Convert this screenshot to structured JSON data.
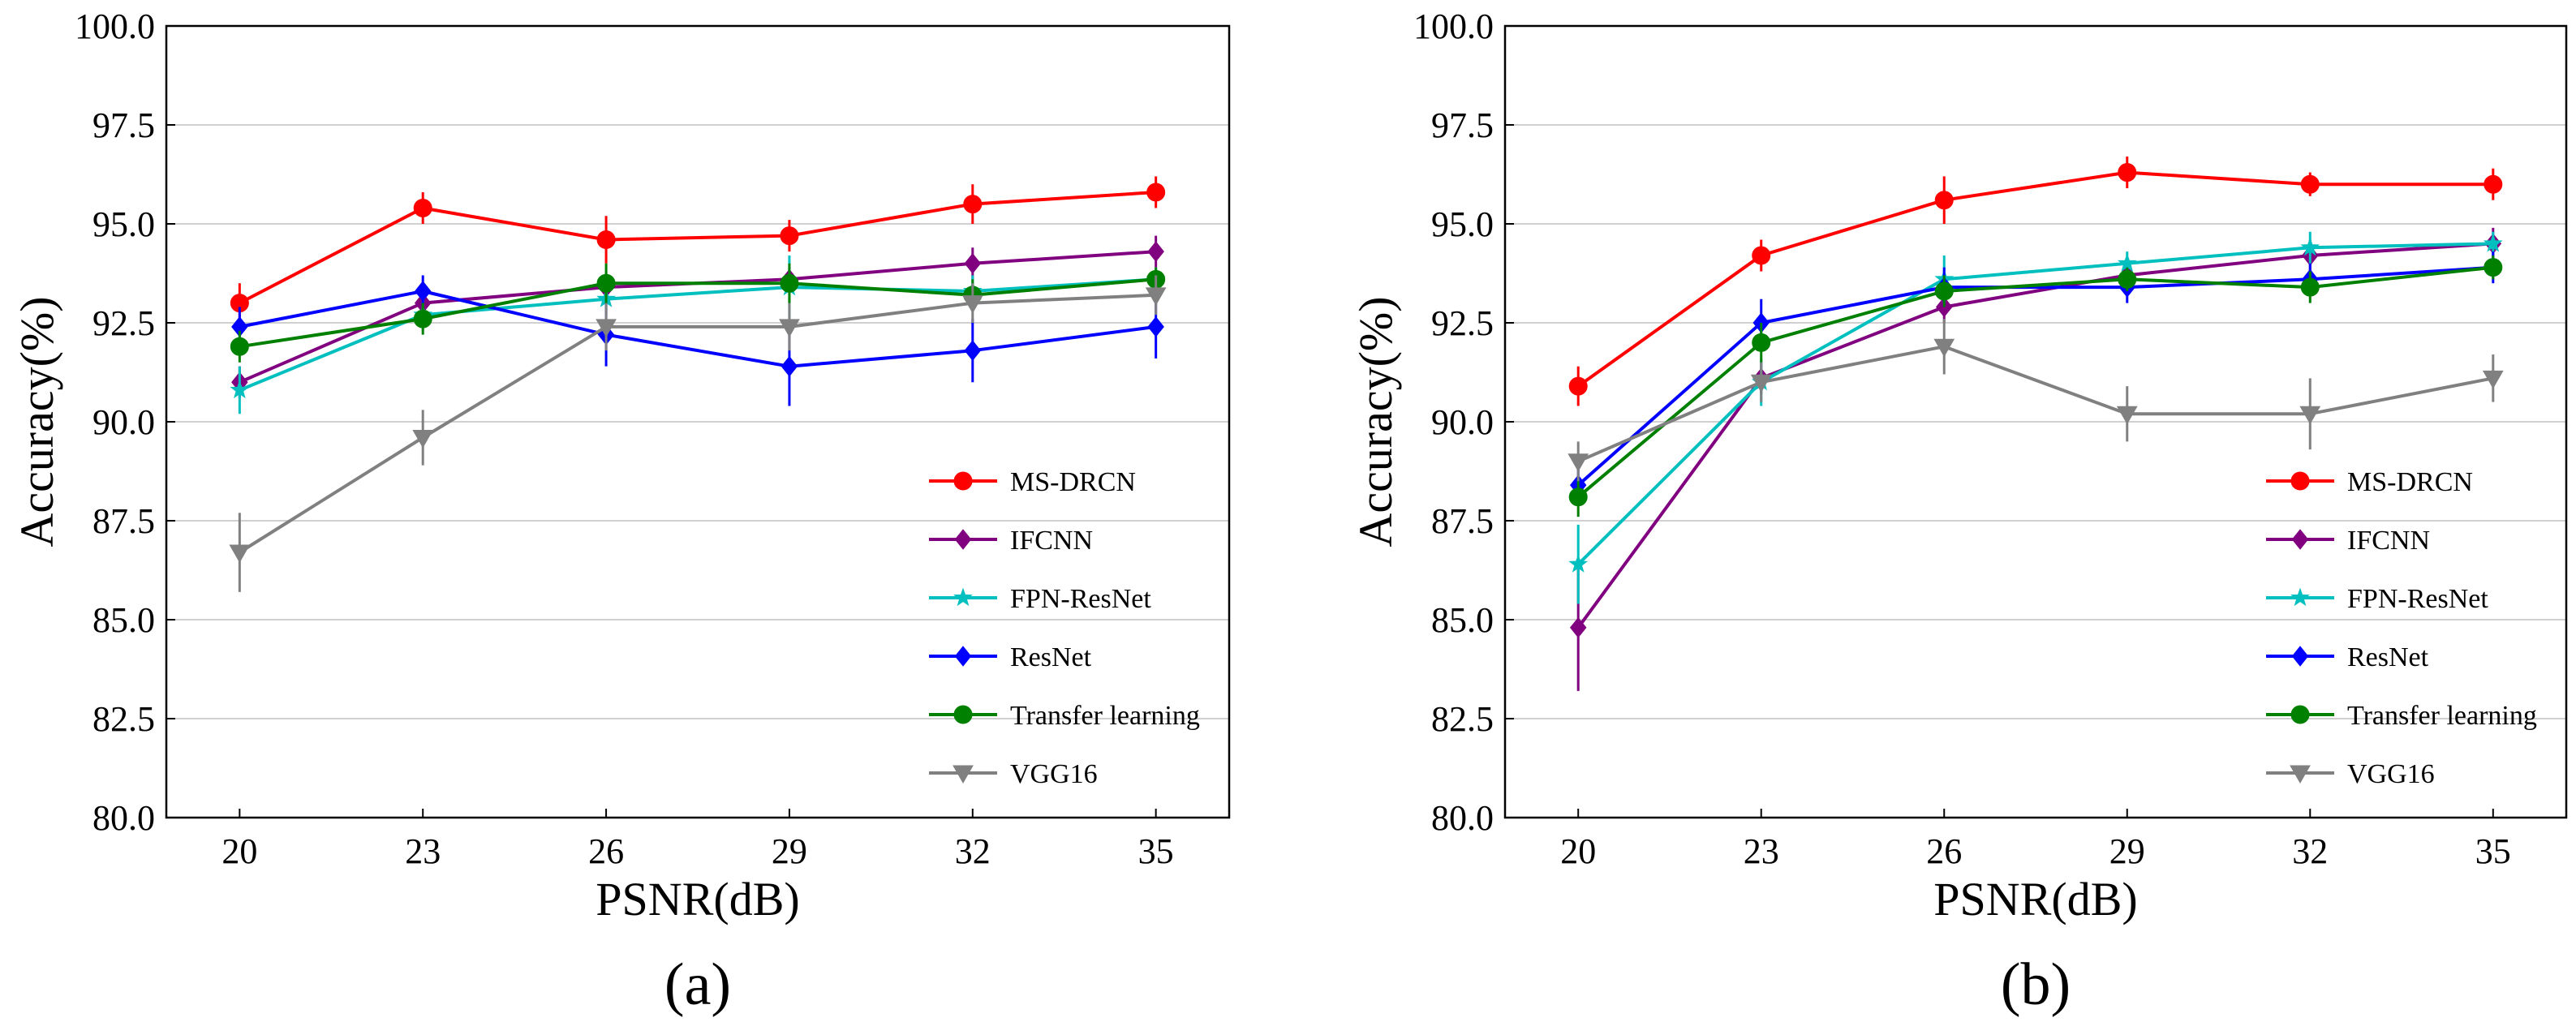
{
  "chart_data": [
    {
      "type": "line",
      "panel_label": "(a)",
      "xlabel": "PSNR(dB)",
      "ylabel": "Accuracy(%)",
      "x": [
        20,
        23,
        26,
        29,
        32,
        35
      ],
      "x_tick_labels": [
        "20",
        "23",
        "26",
        "29",
        "32",
        "35"
      ],
      "xlim": [
        18.8,
        36.2
      ],
      "ylim": [
        80.0,
        100.0
      ],
      "y_ticks": [
        80.0,
        82.5,
        85.0,
        87.5,
        90.0,
        92.5,
        95.0,
        97.5,
        100.0
      ],
      "y_tick_labels": [
        "80.0",
        "82.5",
        "85.0",
        "87.5",
        "90.0",
        "92.5",
        "95.0",
        "97.5",
        "100.0"
      ],
      "grid": "horizontal",
      "legend_position": "bottom-right",
      "series": [
        {
          "name": "MS-DRCN",
          "color": "#ff0000",
          "marker": "circle",
          "values": [
            93.0,
            95.4,
            94.6,
            94.7,
            95.5,
            95.8
          ],
          "errors": [
            0.5,
            0.4,
            0.6,
            0.4,
            0.5,
            0.4
          ]
        },
        {
          "name": "IFCNN",
          "color": "#800080",
          "marker": "diamond",
          "values": [
            91.0,
            93.0,
            93.4,
            93.6,
            94.0,
            94.3
          ],
          "errors": [
            0.4,
            0.4,
            0.4,
            0.3,
            0.4,
            0.4
          ]
        },
        {
          "name": "FPN-ResNet",
          "color": "#00bfbf",
          "marker": "star",
          "values": [
            90.8,
            92.7,
            93.1,
            93.4,
            93.3,
            93.6
          ],
          "errors": [
            0.6,
            0.4,
            0.4,
            0.8,
            0.4,
            0.3
          ]
        },
        {
          "name": "ResNet",
          "color": "#0000ff",
          "marker": "diamond",
          "values": [
            92.4,
            93.3,
            92.2,
            91.4,
            91.8,
            92.4
          ],
          "errors": [
            0.5,
            0.4,
            0.8,
            1.0,
            0.8,
            0.8
          ]
        },
        {
          "name": "Transfer learning",
          "color": "#008000",
          "marker": "circle",
          "values": [
            91.9,
            92.6,
            93.5,
            93.5,
            93.2,
            93.6
          ],
          "errors": [
            0.4,
            0.4,
            0.5,
            0.5,
            0.4,
            0.3
          ]
        },
        {
          "name": "VGG16",
          "color": "#808080",
          "marker": "triangle-down",
          "values": [
            86.7,
            89.6,
            92.4,
            92.4,
            93.0,
            93.2
          ],
          "errors": [
            1.0,
            0.7,
            0.6,
            0.6,
            0.5,
            0.5
          ]
        }
      ]
    },
    {
      "type": "line",
      "panel_label": "(b)",
      "xlabel": "PSNR(dB)",
      "ylabel": "Accuracy(%)",
      "x": [
        20,
        23,
        26,
        29,
        32,
        35
      ],
      "x_tick_labels": [
        "20",
        "23",
        "26",
        "29",
        "32",
        "35"
      ],
      "xlim": [
        18.8,
        36.2
      ],
      "ylim": [
        80.0,
        100.0
      ],
      "y_ticks": [
        80.0,
        82.5,
        85.0,
        87.5,
        90.0,
        92.5,
        95.0,
        97.5,
        100.0
      ],
      "y_tick_labels": [
        "80.0",
        "82.5",
        "85.0",
        "87.5",
        "90.0",
        "92.5",
        "95.0",
        "97.5",
        "100.0"
      ],
      "grid": "horizontal",
      "legend_position": "bottom-right",
      "series": [
        {
          "name": "MS-DRCN",
          "color": "#ff0000",
          "marker": "circle",
          "values": [
            90.9,
            94.2,
            95.6,
            96.3,
            96.0,
            96.0
          ],
          "errors": [
            0.5,
            0.4,
            0.6,
            0.4,
            0.3,
            0.4
          ]
        },
        {
          "name": "IFCNN",
          "color": "#800080",
          "marker": "diamond",
          "values": [
            84.8,
            91.1,
            92.9,
            93.7,
            94.2,
            94.5
          ],
          "errors": [
            1.6,
            0.4,
            0.4,
            0.3,
            0.4,
            0.4
          ]
        },
        {
          "name": "FPN-ResNet",
          "color": "#00bfbf",
          "marker": "star",
          "values": [
            86.4,
            91.0,
            93.6,
            94.0,
            94.4,
            94.5
          ],
          "errors": [
            1.0,
            0.6,
            0.6,
            0.3,
            0.4,
            0.3
          ]
        },
        {
          "name": "ResNet",
          "color": "#0000ff",
          "marker": "diamond",
          "values": [
            88.4,
            92.5,
            93.4,
            93.4,
            93.6,
            93.9
          ],
          "errors": [
            0.5,
            0.6,
            0.5,
            0.4,
            0.4,
            0.4
          ]
        },
        {
          "name": "Transfer learning",
          "color": "#008000",
          "marker": "circle",
          "values": [
            88.1,
            92.0,
            93.3,
            93.6,
            93.4,
            93.9
          ],
          "errors": [
            0.5,
            0.5,
            0.4,
            0.3,
            0.4,
            0.3
          ]
        },
        {
          "name": "VGG16",
          "color": "#808080",
          "marker": "triangle-down",
          "values": [
            89.0,
            91.0,
            91.9,
            90.2,
            90.2,
            91.1
          ],
          "errors": [
            0.5,
            0.5,
            0.7,
            0.7,
            0.9,
            0.6
          ]
        }
      ]
    }
  ]
}
